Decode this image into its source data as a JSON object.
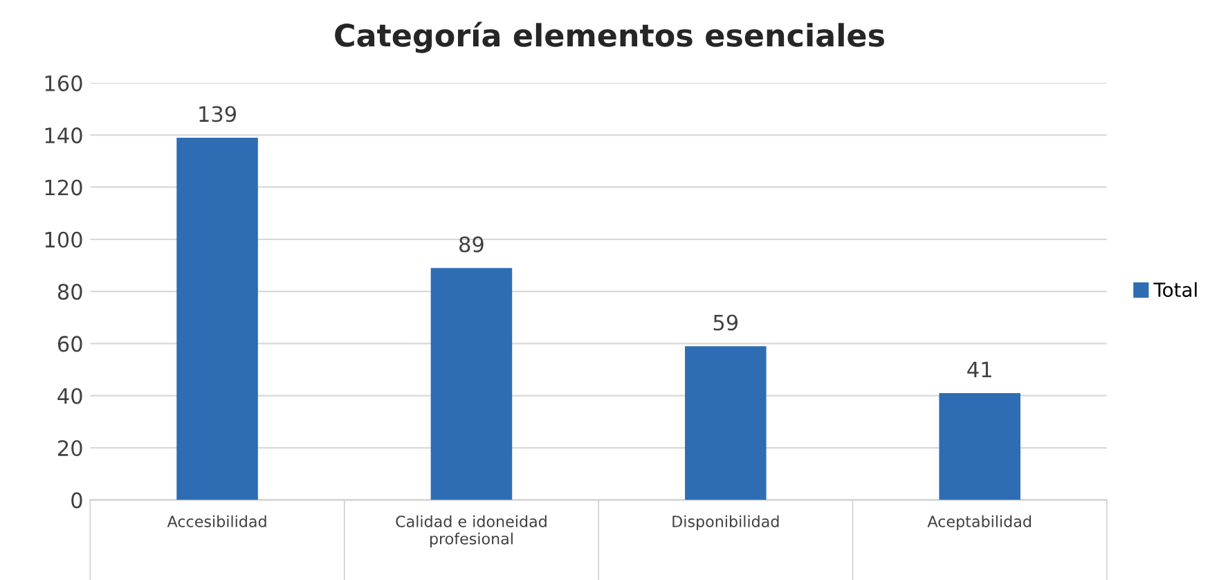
{
  "chart_data": {
    "type": "bar",
    "title": "Categoría elementos esenciales",
    "categories": [
      "Accesibilidad",
      "Calidad e idoneidad profesional",
      "Disponibilidad",
      "Aceptabilidad"
    ],
    "series": [
      {
        "name": "Total",
        "color": "#2e6db4",
        "values": [
          139,
          89,
          59,
          41
        ]
      }
    ],
    "ylim": [
      0,
      160
    ],
    "yticks": [
      0,
      20,
      40,
      60,
      80,
      100,
      120,
      140,
      160
    ],
    "grid": "y",
    "legend": "right",
    "data_labels": true
  }
}
